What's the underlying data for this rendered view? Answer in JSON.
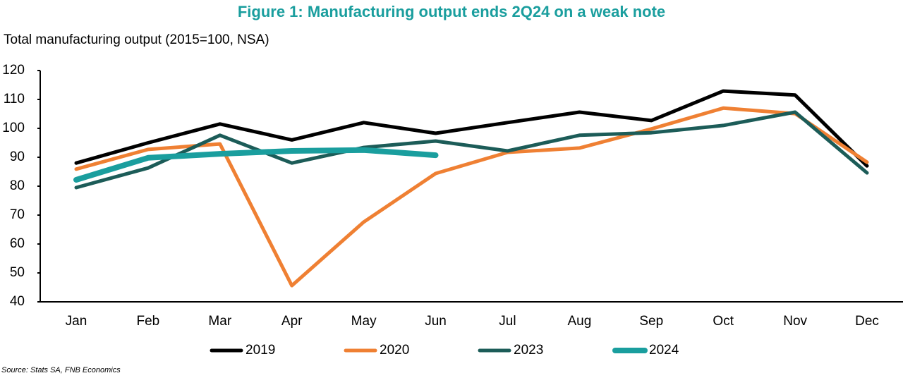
{
  "chart_data": {
    "type": "line",
    "title": "Figure 1: Manufacturing output ends 2Q24 on a weak note",
    "subtitle": "Total manufacturing output (2015=100, NSA)",
    "source": "Source: Stats SA, FNB Economics",
    "categories": [
      "Jan",
      "Feb",
      "Mar",
      "Apr",
      "May",
      "Jun",
      "Jul",
      "Aug",
      "Sep",
      "Oct",
      "Nov",
      "Dec"
    ],
    "series": [
      {
        "name": "2019",
        "color": "#000000",
        "values": [
          88,
          95,
          101.5,
          96,
          102,
          98.3,
          102,
          105.6,
          102.7,
          112.9,
          111.5,
          87
        ]
      },
      {
        "name": "2020",
        "color": "#ef8033",
        "values": [
          85.9,
          92.7,
          94.6,
          45.6,
          67.6,
          84.4,
          91.7,
          93.2,
          99.8,
          107,
          105.1,
          88.3
        ]
      },
      {
        "name": "2023",
        "color": "#1c5c58",
        "values": [
          79.5,
          86.3,
          97.6,
          88,
          93.4,
          95.6,
          92.2,
          97.6,
          98.5,
          101,
          105.6,
          84.6
        ]
      },
      {
        "name": "2024",
        "color": "#1a9e9e",
        "values": [
          82.2,
          89.8,
          91.2,
          92.2,
          92.5,
          90.7,
          null,
          null,
          null,
          null,
          null,
          null
        ]
      }
    ],
    "ylim": [
      40,
      120
    ],
    "yticks": [
      40,
      50,
      60,
      70,
      80,
      90,
      100,
      110,
      120
    ],
    "grid": false,
    "legend": "bottom"
  }
}
